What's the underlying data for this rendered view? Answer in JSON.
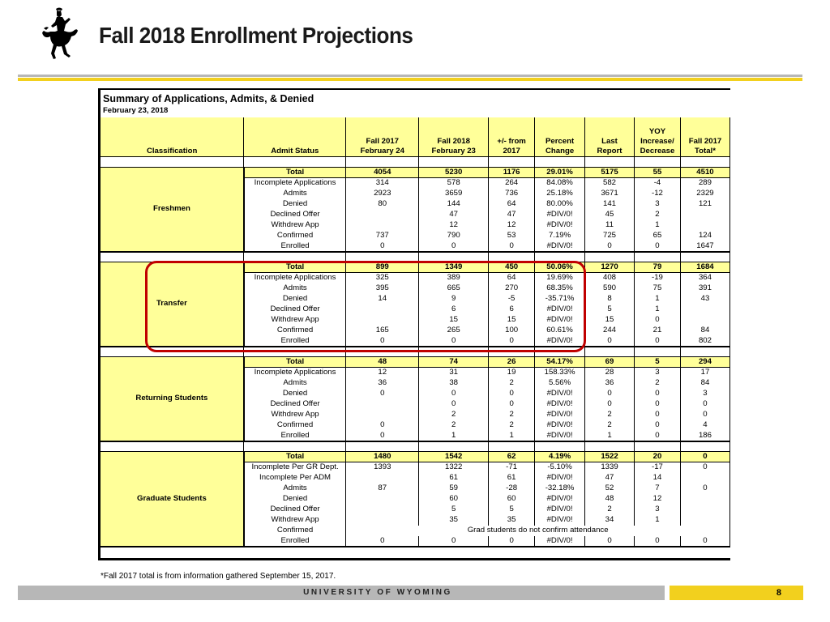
{
  "slide": {
    "title": "Fall 2018 Enrollment Projections",
    "footer_text": "UNIVERSITY OF WYOMING",
    "page_number": "8",
    "footnote": "*Fall 2017 total is from information gathered September 15, 2017.",
    "colors": {
      "brand_gold": "#f2d01e",
      "brand_gray": "#b7b7b7",
      "highlight_red": "#c00000",
      "cell_yellow": "#ffff99"
    },
    "logo_icon": "bucking-horse-rider-icon"
  },
  "sheet": {
    "title": "Summary of  Applications, Admits, & Denied",
    "date": "February 23, 2018",
    "headers": [
      [
        "",
        "",
        "",
        "Classification"
      ],
      [
        "",
        "",
        "",
        "Admit Status"
      ],
      [
        "",
        "",
        "Fall 2017",
        "February 24"
      ],
      [
        "",
        "",
        "Fall 2018",
        "February 23"
      ],
      [
        "",
        "",
        "+/- from",
        "2017"
      ],
      [
        "",
        "",
        "Percent",
        "Change"
      ],
      [
        "",
        "",
        "Last",
        "Report"
      ],
      [
        "",
        "YOY",
        "Increase/",
        "Decrease"
      ],
      [
        "",
        "",
        "Fall 2017",
        "Total*"
      ]
    ],
    "groups": [
      {
        "classification": "Freshmen",
        "rows": [
          [
            "Total",
            "4054",
            "5230",
            "1176",
            "29.01%",
            "5175",
            "55",
            "4510"
          ],
          [
            "Incomplete Applications",
            "314",
            "578",
            "264",
            "84.08%",
            "582",
            "-4",
            "289"
          ],
          [
            "Admits",
            "2923",
            "3659",
            "736",
            "25.18%",
            "3671",
            "-12",
            "2329"
          ],
          [
            "Denied",
            "80",
            "144",
            "64",
            "80.00%",
            "141",
            "3",
            "121"
          ],
          [
            "Declined Offer",
            "",
            "47",
            "47",
            "#DIV/0!",
            "45",
            "2",
            ""
          ],
          [
            "Withdrew App",
            "",
            "12",
            "12",
            "#DIV/0!",
            "11",
            "1",
            ""
          ],
          [
            "Confirmed",
            "737",
            "790",
            "53",
            "7.19%",
            "725",
            "65",
            "124"
          ],
          [
            "Enrolled",
            "0",
            "0",
            "0",
            "#DIV/0!",
            "0",
            "0",
            "1647"
          ]
        ]
      },
      {
        "classification": "Transfer",
        "rows": [
          [
            "Total",
            "899",
            "1349",
            "450",
            "50.06%",
            "1270",
            "79",
            "1684"
          ],
          [
            "Incomplete Applications",
            "325",
            "389",
            "64",
            "19.69%",
            "408",
            "-19",
            "364"
          ],
          [
            "Admits",
            "395",
            "665",
            "270",
            "68.35%",
            "590",
            "75",
            "391"
          ],
          [
            "Denied",
            "14",
            "9",
            "-5",
            "-35.71%",
            "8",
            "1",
            "43"
          ],
          [
            "Declined Offer",
            "",
            "6",
            "6",
            "#DIV/0!",
            "5",
            "1",
            ""
          ],
          [
            "Withdrew App",
            "",
            "15",
            "15",
            "#DIV/0!",
            "15",
            "0",
            ""
          ],
          [
            "Confirmed",
            "165",
            "265",
            "100",
            "60.61%",
            "244",
            "21",
            "84"
          ],
          [
            "Enrolled",
            "0",
            "0",
            "0",
            "#DIV/0!",
            "0",
            "0",
            "802"
          ]
        ]
      },
      {
        "classification": "Returning Students",
        "rows": [
          [
            "Total",
            "48",
            "74",
            "26",
            "54.17%",
            "69",
            "5",
            "294"
          ],
          [
            "Incomplete Applications",
            "12",
            "31",
            "19",
            "158.33%",
            "28",
            "3",
            "17"
          ],
          [
            "Admits",
            "36",
            "38",
            "2",
            "5.56%",
            "36",
            "2",
            "84"
          ],
          [
            "Denied",
            "0",
            "0",
            "0",
            "#DIV/0!",
            "0",
            "0",
            "3"
          ],
          [
            "Declined Offer",
            "",
            "0",
            "0",
            "#DIV/0!",
            "0",
            "0",
            "0"
          ],
          [
            "Withdrew App",
            "",
            "2",
            "2",
            "#DIV/0!",
            "2",
            "0",
            "0"
          ],
          [
            "Confirmed",
            "0",
            "2",
            "2",
            "#DIV/0!",
            "2",
            "0",
            "4"
          ],
          [
            "Enrolled",
            "0",
            "1",
            "1",
            "#DIV/0!",
            "1",
            "0",
            "186"
          ]
        ]
      },
      {
        "classification": "Graduate Students",
        "rows": [
          [
            "Total",
            "1480",
            "1542",
            "62",
            "4.19%",
            "1522",
            "20",
            "0"
          ],
          [
            "Incomplete Per GR Dept.",
            "1393",
            "1322",
            "-71",
            "-5.10%",
            "1339",
            "-17",
            "0"
          ],
          [
            "Incomplete Per ADM",
            "",
            "61",
            "61",
            "#DIV/0!",
            "47",
            "14",
            ""
          ],
          [
            "Admits",
            "87",
            "59",
            "-28",
            "-32.18%",
            "52",
            "7",
            "0"
          ],
          [
            "Denied",
            "",
            "60",
            "60",
            "#DIV/0!",
            "48",
            "12",
            ""
          ],
          [
            "Declined Offer",
            "",
            "5",
            "5",
            "#DIV/0!",
            "2",
            "3",
            ""
          ],
          [
            "Withdrew App",
            "",
            "35",
            "35",
            "#DIV/0!",
            "34",
            "1",
            ""
          ],
          [
            "Confirmed",
            "Grad students do not confirm attendance"
          ],
          [
            "Enrolled",
            "0",
            "0",
            "0",
            "#DIV/0!",
            "0",
            "0",
            "0"
          ]
        ]
      }
    ]
  }
}
